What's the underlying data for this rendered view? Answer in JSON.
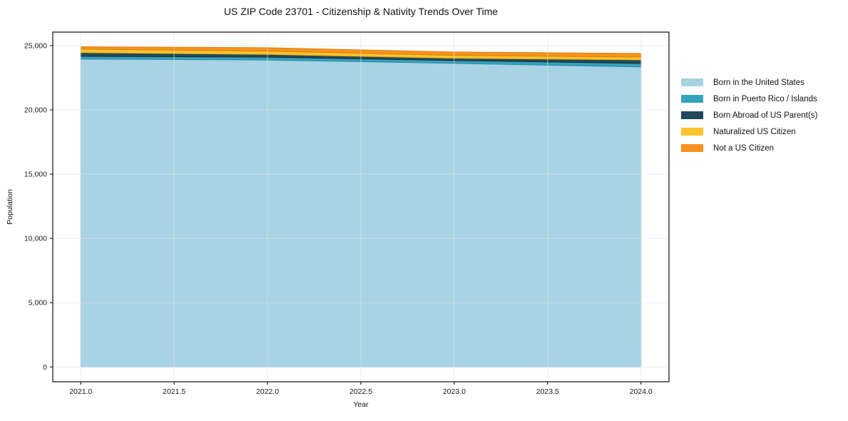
{
  "title": "US ZIP Code 23701 - Citizenship & Nativity Trends Over Time",
  "chart_data": {
    "type": "area",
    "stacked": true,
    "title": "US ZIP Code 23701 - Citizenship & Nativity Trends Over Time",
    "xlabel": "Year",
    "ylabel": "Population",
    "x": [
      2021,
      2022,
      2023,
      2024
    ],
    "series": [
      {
        "name": "Born in the United States",
        "color": "#a7d3e5",
        "edge": "#8cc0d8",
        "values": [
          23950,
          23880,
          23620,
          23340
        ]
      },
      {
        "name": "Born in Puerto Rico / Islands",
        "color": "#35a2bb",
        "edge": "#2a8ba1",
        "values": [
          220,
          220,
          220,
          275
        ]
      },
      {
        "name": "Born Abroad of US Parent(s)",
        "color": "#21495a",
        "edge": "#152f3c",
        "values": [
          280,
          220,
          180,
          275
        ]
      },
      {
        "name": "Naturalized US Citizen",
        "color": "#fcc32d",
        "edge": "#e2ab15",
        "values": [
          275,
          255,
          220,
          220
        ]
      },
      {
        "name": "Not a US Citizen",
        "color": "#f6941e",
        "edge": "#dc7d10",
        "values": [
          185,
          260,
          260,
          280
        ]
      }
    ],
    "xlim": [
      2020.85,
      2024.15
    ],
    "ylim": [
      -1150,
      26050
    ],
    "x_ticks": [
      2021.0,
      2021.5,
      2022.0,
      2022.5,
      2023.0,
      2023.5,
      2024.0
    ],
    "x_tick_labels": [
      "2021.0",
      "2021.5",
      "2022.0",
      "2022.5",
      "2023.0",
      "2023.5",
      "2024.0"
    ],
    "y_ticks": [
      0,
      5000,
      10000,
      15000,
      20000,
      25000
    ],
    "y_tick_labels": [
      "0",
      "5,000",
      "10,000",
      "15,000",
      "20,000",
      "25,000"
    ],
    "grid": true,
    "legend_position": "right",
    "colors": {
      "background": "#ffffff",
      "frame": "#1f1f1f",
      "gridline": "#e4e4e4",
      "tick_text": "#1a1a1a"
    }
  }
}
